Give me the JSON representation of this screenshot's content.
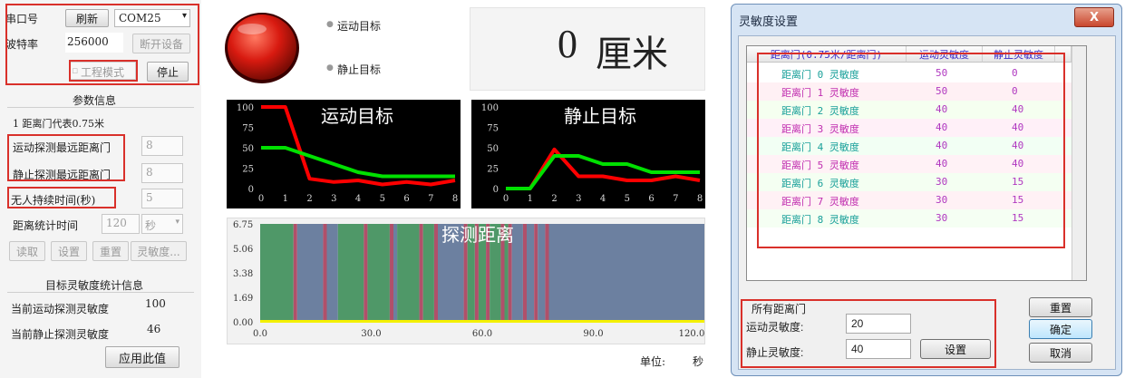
{
  "left": {
    "port_label": "串口号",
    "refresh_button": "刷新",
    "port_value": "COM25",
    "baud_label": "波特率",
    "baud_value": "256000",
    "disconnect_button": "断开设备",
    "engineering_mode": "工程模式",
    "stop_button": "停止",
    "param_header": "参数信息",
    "gate_note": "1 距离门代表0.75米",
    "move_max_label": "运动探测最远距离门",
    "move_max_value": "8",
    "still_max_label": "静止探测最远距离门",
    "still_max_value": "8",
    "nobody_label": "无人持续时间(秒)",
    "nobody_value": "5",
    "stat_time_label": "距离统计时间",
    "stat_time_value": "120",
    "stat_time_unit": "秒",
    "read_button": "读取",
    "set_button": "设置",
    "reset_button": "重置",
    "sensitivity_button": "灵敏度...",
    "sens_stats_header": "目标灵敏度统计信息",
    "cur_move_label": "当前运动探测灵敏度",
    "cur_move_value": "100",
    "cur_still_label": "当前静止探测灵敏度",
    "cur_still_value": "46",
    "apply_button": "应用此值"
  },
  "status": {
    "move_target": "运动目标",
    "still_target": "静止目标",
    "distance_value": "0",
    "distance_unit": "厘米",
    "indicator_color": "#d81a10"
  },
  "chart_data": [
    {
      "type": "line",
      "title": "运动目标",
      "x": [
        0,
        1,
        2,
        3,
        4,
        5,
        6,
        7,
        8
      ],
      "ylim": [
        0,
        100
      ],
      "yticks": [
        "100",
        "75",
        "50",
        "25",
        "0"
      ],
      "xticks": [
        "0",
        "1",
        "2",
        "3",
        "4",
        "5",
        "6",
        "7",
        "8"
      ],
      "series": [
        {
          "color": "#ff0000",
          "values": [
            100,
            100,
            12,
            8,
            10,
            5,
            8,
            5,
            10
          ]
        },
        {
          "color": "#00e000",
          "values": [
            50,
            50,
            40,
            30,
            20,
            15,
            15,
            15,
            15
          ]
        }
      ]
    },
    {
      "type": "line",
      "title": "静止目标",
      "x": [
        0,
        1,
        2,
        3,
        4,
        5,
        6,
        7,
        8
      ],
      "ylim": [
        0,
        100
      ],
      "yticks": [
        "100",
        "75",
        "50",
        "25",
        "0"
      ],
      "xticks": [
        "0",
        "1",
        "2",
        "3",
        "4",
        "5",
        "6",
        "7",
        "8"
      ],
      "series": [
        {
          "color": "#ff0000",
          "values": [
            0,
            0,
            48,
            15,
            15,
            10,
            10,
            15,
            10
          ]
        },
        {
          "color": "#00e000",
          "values": [
            0,
            0,
            40,
            40,
            30,
            30,
            20,
            20,
            20
          ]
        }
      ]
    },
    {
      "type": "area",
      "title": "探测距离",
      "xlim": [
        0,
        120
      ],
      "ylim": [
        0,
        6.75
      ],
      "yticks": [
        "6.75",
        "5.06",
        "3.38",
        "1.69",
        "0.00"
      ],
      "xticks": [
        "0.0",
        "30.0",
        "60.0",
        "90.0",
        "120.0"
      ],
      "colors": {
        "green": "#4f9868",
        "blue": "#6c80a0",
        "red": "#b0506a"
      },
      "bands": [
        [
          0,
          9,
          "green"
        ],
        [
          9,
          10,
          "red"
        ],
        [
          10,
          17,
          "blue"
        ],
        [
          17,
          18,
          "red"
        ],
        [
          18,
          21,
          "blue"
        ],
        [
          21,
          28,
          "green"
        ],
        [
          28,
          29,
          "red"
        ],
        [
          29,
          35,
          "green"
        ],
        [
          35,
          36,
          "red"
        ],
        [
          36,
          37,
          "blue"
        ],
        [
          37,
          43,
          "green"
        ],
        [
          43,
          44,
          "red"
        ],
        [
          44,
          47,
          "green"
        ],
        [
          47,
          48,
          "red"
        ],
        [
          48,
          55,
          "blue"
        ],
        [
          55,
          56,
          "red"
        ],
        [
          56,
          58,
          "green"
        ],
        [
          58,
          59,
          "red"
        ],
        [
          59,
          61,
          "green"
        ],
        [
          61,
          62,
          "red"
        ],
        [
          62,
          65,
          "green"
        ],
        [
          65,
          66,
          "red"
        ],
        [
          66,
          67,
          "green"
        ],
        [
          67,
          68,
          "red"
        ],
        [
          68,
          71,
          "blue"
        ],
        [
          71,
          72,
          "red"
        ],
        [
          72,
          74,
          "blue"
        ],
        [
          74,
          75,
          "red"
        ],
        [
          75,
          77,
          "blue"
        ],
        [
          77,
          78,
          "red"
        ],
        [
          78,
          120,
          "blue"
        ]
      ],
      "unit_label": "单位:",
      "unit_value": "秒"
    }
  ],
  "dialog": {
    "title": "灵敏度设置",
    "close": "X",
    "columns": [
      "距离门(0.75米/距离门)",
      "运动灵敏度",
      "静止灵敏度"
    ],
    "rows": [
      {
        "gate": "距离门 0 灵敏度",
        "move": "50",
        "still": "0"
      },
      {
        "gate": "距离门 1 灵敏度",
        "move": "50",
        "still": "0"
      },
      {
        "gate": "距离门 2 灵敏度",
        "move": "40",
        "still": "40"
      },
      {
        "gate": "距离门 3 灵敏度",
        "move": "40",
        "still": "40"
      },
      {
        "gate": "距离门 4 灵敏度",
        "move": "40",
        "still": "40"
      },
      {
        "gate": "距离门 5 灵敏度",
        "move": "40",
        "still": "40"
      },
      {
        "gate": "距离门 6 灵敏度",
        "move": "30",
        "still": "15"
      },
      {
        "gate": "距离门 7 灵敏度",
        "move": "30",
        "still": "15"
      },
      {
        "gate": "距离门 8 灵敏度",
        "move": "30",
        "still": "15"
      }
    ],
    "all_gates_label": "所有距离门",
    "move_sens_label": "运动灵敏度:",
    "move_sens_value": "20",
    "still_sens_label": "静止灵敏度:",
    "still_sens_value": "40",
    "set_button": "设置",
    "reset_button": "重置",
    "ok_button": "确定",
    "cancel_button": "取消"
  }
}
